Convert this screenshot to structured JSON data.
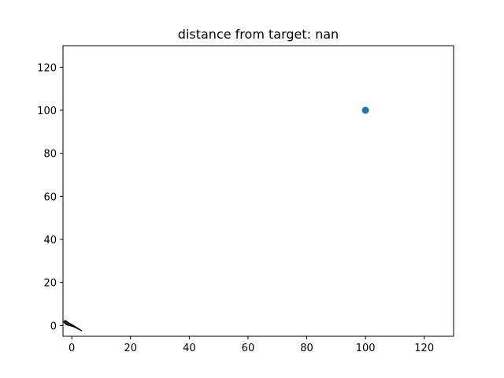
{
  "chart_data": {
    "type": "scatter",
    "title": "distance from target: nan",
    "xlabel": "",
    "ylabel": "",
    "xlim": [
      -3,
      130
    ],
    "ylim": [
      -5,
      130
    ],
    "grid": false,
    "x_ticks": [
      0,
      20,
      40,
      60,
      80,
      100,
      120
    ],
    "y_ticks": [
      0,
      20,
      40,
      60,
      80,
      100,
      120
    ],
    "target_point": {
      "x": 100,
      "y": 100,
      "color": "#1f77b4"
    },
    "trajectory": {
      "color": "#000000",
      "points": [
        [
          -2.5,
          2.5
        ],
        [
          -1.0,
          1.2
        ],
        [
          0.5,
          0.0
        ],
        [
          3.5,
          -2.5
        ],
        [
          0.5,
          -0.5
        ],
        [
          -2.0,
          0.5
        ],
        [
          -2.8,
          1.8
        ],
        [
          -2.0,
          2.0
        ]
      ]
    }
  }
}
